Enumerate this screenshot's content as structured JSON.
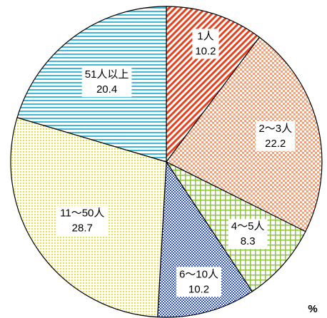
{
  "chart_data": {
    "type": "pie",
    "categories": [
      "1人",
      "2～3人",
      "4～5人",
      "6～10人",
      "11～50人",
      "51人以上"
    ],
    "values": [
      10.2,
      22.2,
      8.3,
      10.2,
      28.7,
      20.4
    ],
    "colors": [
      "#e8401c",
      "#f4a07a",
      "#8cc43c",
      "#2a4fd0",
      "#e8e040",
      "#40b8d8"
    ],
    "unit": "%"
  }
}
